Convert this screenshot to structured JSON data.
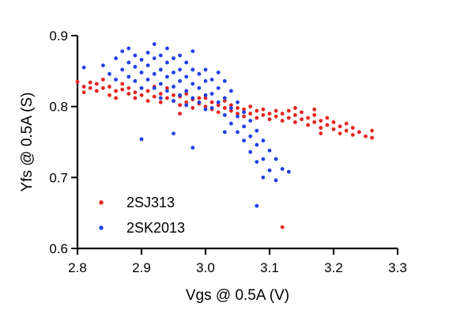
{
  "chart_data": {
    "type": "scatter",
    "title": "",
    "xlabel": "Vgs @ 0.5A (V)",
    "ylabel": "Yfs @ 0.5A (S)",
    "xlim": [
      2.8,
      3.3
    ],
    "ylim": [
      0.6,
      0.9
    ],
    "x_ticks": [
      "2.8",
      "2.9",
      "3.0",
      "3.1",
      "3.2",
      "3.3"
    ],
    "y_ticks": [
      "0.6",
      "0.7",
      "0.8",
      "0.9"
    ],
    "grid": false,
    "legend_position": "bottom-left",
    "series": [
      {
        "name": "2SJ313",
        "color": "#e8231f",
        "points": [
          [
            2.8,
            0.835
          ],
          [
            2.81,
            0.828
          ],
          [
            2.81,
            0.82
          ],
          [
            2.82,
            0.834
          ],
          [
            2.82,
            0.826
          ],
          [
            2.83,
            0.822
          ],
          [
            2.83,
            0.832
          ],
          [
            2.84,
            0.838
          ],
          [
            2.84,
            0.826
          ],
          [
            2.85,
            0.816
          ],
          [
            2.85,
            0.828
          ],
          [
            2.86,
            0.822
          ],
          [
            2.86,
            0.812
          ],
          [
            2.87,
            0.824
          ],
          [
            2.87,
            0.832
          ],
          [
            2.88,
            0.818
          ],
          [
            2.88,
            0.826
          ],
          [
            2.89,
            0.812
          ],
          [
            2.89,
            0.82
          ],
          [
            2.9,
            0.826
          ],
          [
            2.9,
            0.816
          ],
          [
            2.91,
            0.808
          ],
          [
            2.91,
            0.822
          ],
          [
            2.92,
            0.828
          ],
          [
            2.92,
            0.814
          ],
          [
            2.93,
            0.806
          ],
          [
            2.93,
            0.818
          ],
          [
            2.94,
            0.812
          ],
          [
            2.94,
            0.826
          ],
          [
            2.95,
            0.808
          ],
          [
            2.95,
            0.816
          ],
          [
            2.96,
            0.802
          ],
          [
            2.96,
            0.814
          ],
          [
            2.97,
            0.818
          ],
          [
            2.97,
            0.806
          ],
          [
            2.98,
            0.81
          ],
          [
            2.98,
            0.798
          ],
          [
            2.99,
            0.812
          ],
          [
            2.99,
            0.804
          ],
          [
            3.0,
            0.8
          ],
          [
            3.0,
            0.812
          ],
          [
            3.01,
            0.806
          ],
          [
            3.01,
            0.796
          ],
          [
            3.02,
            0.802
          ],
          [
            3.02,
            0.792
          ],
          [
            3.03,
            0.798
          ],
          [
            3.03,
            0.808
          ],
          [
            3.04,
            0.794
          ],
          [
            3.04,
            0.802
          ],
          [
            3.05,
            0.79
          ],
          [
            3.05,
            0.798
          ],
          [
            3.06,
            0.786
          ],
          [
            3.06,
            0.796
          ],
          [
            3.07,
            0.79
          ],
          [
            3.07,
            0.8
          ],
          [
            3.08,
            0.784
          ],
          [
            3.08,
            0.794
          ],
          [
            3.09,
            0.788
          ],
          [
            3.09,
            0.796
          ],
          [
            3.1,
            0.782
          ],
          [
            3.1,
            0.79
          ],
          [
            3.11,
            0.786
          ],
          [
            3.11,
            0.794
          ],
          [
            3.12,
            0.78
          ],
          [
            3.12,
            0.79
          ],
          [
            3.13,
            0.784
          ],
          [
            3.13,
            0.794
          ],
          [
            3.14,
            0.778
          ],
          [
            3.14,
            0.788
          ],
          [
            3.15,
            0.782
          ],
          [
            3.15,
            0.792
          ],
          [
            3.16,
            0.774
          ],
          [
            3.16,
            0.784
          ],
          [
            3.17,
            0.778
          ],
          [
            3.17,
            0.788
          ],
          [
            3.18,
            0.77
          ],
          [
            3.18,
            0.78
          ],
          [
            3.19,
            0.774
          ],
          [
            3.19,
            0.784
          ],
          [
            3.2,
            0.768
          ],
          [
            3.2,
            0.778
          ],
          [
            3.21,
            0.772
          ],
          [
            3.21,
            0.762
          ],
          [
            3.22,
            0.766
          ],
          [
            3.22,
            0.776
          ],
          [
            3.23,
            0.76
          ],
          [
            3.23,
            0.77
          ],
          [
            3.24,
            0.764
          ],
          [
            3.25,
            0.758
          ],
          [
            3.26,
            0.766
          ],
          [
            3.26,
            0.756
          ],
          [
            3.18,
            0.762
          ],
          [
            3.17,
            0.796
          ],
          [
            3.14,
            0.798
          ],
          [
            2.96,
            0.79
          ],
          [
            3.12,
            0.63
          ]
        ]
      },
      {
        "name": "2SK2013",
        "color": "#1f3fe8",
        "points": [
          [
            2.81,
            0.855
          ],
          [
            2.84,
            0.858
          ],
          [
            2.85,
            0.846
          ],
          [
            2.86,
            0.868
          ],
          [
            2.86,
            0.838
          ],
          [
            2.87,
            0.878
          ],
          [
            2.87,
            0.852
          ],
          [
            2.88,
            0.862
          ],
          [
            2.88,
            0.842
          ],
          [
            2.88,
            0.882
          ],
          [
            2.89,
            0.856
          ],
          [
            2.89,
            0.872
          ],
          [
            2.89,
            0.836
          ],
          [
            2.9,
            0.866
          ],
          [
            2.9,
            0.848
          ],
          [
            2.9,
            0.826
          ],
          [
            2.91,
            0.876
          ],
          [
            2.91,
            0.858
          ],
          [
            2.91,
            0.838
          ],
          [
            2.92,
            0.888
          ],
          [
            2.92,
            0.868
          ],
          [
            2.92,
            0.846
          ],
          [
            2.92,
            0.826
          ],
          [
            2.93,
            0.872
          ],
          [
            2.93,
            0.852
          ],
          [
            2.93,
            0.832
          ],
          [
            2.93,
            0.812
          ],
          [
            2.94,
            0.882
          ],
          [
            2.94,
            0.862
          ],
          [
            2.94,
            0.842
          ],
          [
            2.94,
            0.822
          ],
          [
            2.95,
            0.868
          ],
          [
            2.95,
            0.848
          ],
          [
            2.95,
            0.828
          ],
          [
            2.95,
            0.808
          ],
          [
            2.96,
            0.872
          ],
          [
            2.96,
            0.852
          ],
          [
            2.96,
            0.836
          ],
          [
            2.96,
            0.816
          ],
          [
            2.97,
            0.862
          ],
          [
            2.97,
            0.842
          ],
          [
            2.97,
            0.822
          ],
          [
            2.97,
            0.802
          ],
          [
            2.98,
            0.878
          ],
          [
            2.98,
            0.852
          ],
          [
            2.98,
            0.832
          ],
          [
            2.98,
            0.812
          ],
          [
            2.99,
            0.846
          ],
          [
            2.99,
            0.826
          ],
          [
            2.99,
            0.806
          ],
          [
            3.0,
            0.852
          ],
          [
            3.0,
            0.836
          ],
          [
            3.0,
            0.816
          ],
          [
            3.0,
            0.796
          ],
          [
            3.01,
            0.838
          ],
          [
            3.01,
            0.818
          ],
          [
            3.01,
            0.798
          ],
          [
            3.02,
            0.848
          ],
          [
            3.02,
            0.826
          ],
          [
            3.02,
            0.806
          ],
          [
            3.03,
            0.836
          ],
          [
            3.03,
            0.812
          ],
          [
            3.03,
            0.788
          ],
          [
            3.04,
            0.822
          ],
          [
            3.04,
            0.798
          ],
          [
            3.04,
            0.776
          ],
          [
            3.05,
            0.806
          ],
          [
            3.05,
            0.786
          ],
          [
            3.05,
            0.764
          ],
          [
            3.06,
            0.792
          ],
          [
            3.06,
            0.772
          ],
          [
            3.06,
            0.752
          ],
          [
            3.07,
            0.78
          ],
          [
            3.07,
            0.758
          ],
          [
            3.07,
            0.736
          ],
          [
            3.08,
            0.766
          ],
          [
            3.08,
            0.746
          ],
          [
            3.08,
            0.722
          ],
          [
            3.09,
            0.752
          ],
          [
            3.09,
            0.726
          ],
          [
            3.09,
            0.7
          ],
          [
            3.1,
            0.738
          ],
          [
            3.1,
            0.71
          ],
          [
            3.11,
            0.726
          ],
          [
            3.11,
            0.696
          ],
          [
            3.12,
            0.712
          ],
          [
            3.08,
            0.66
          ],
          [
            2.9,
            0.754
          ],
          [
            2.95,
            0.762
          ],
          [
            2.98,
            0.742
          ],
          [
            3.03,
            0.764
          ],
          [
            3.13,
            0.708
          ]
        ]
      }
    ]
  }
}
